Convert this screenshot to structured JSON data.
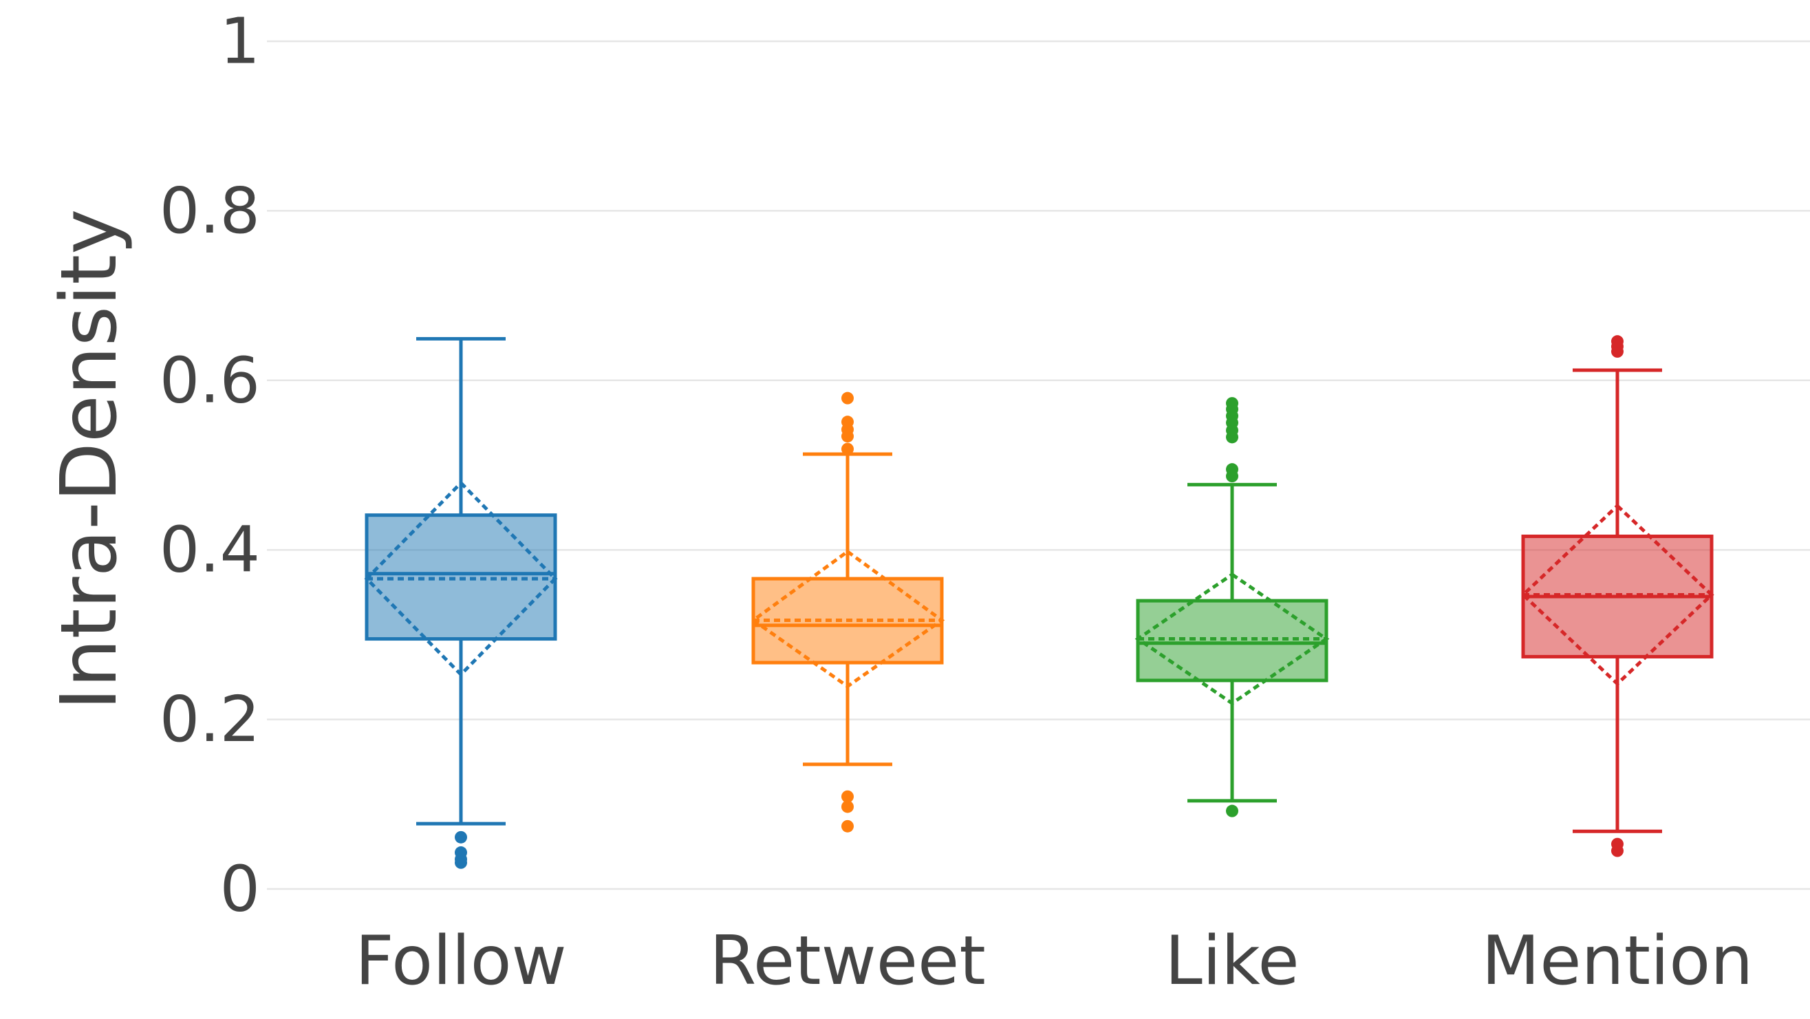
{
  "chart_data": {
    "type": "box",
    "title": "",
    "xlabel": "",
    "ylabel": "Intra-Density",
    "ylim": [
      0,
      1
    ],
    "yticks": [
      0,
      0.2,
      0.4,
      0.6,
      0.8,
      1
    ],
    "ytick_labels": [
      "0",
      "0.2",
      "0.4",
      "0.6",
      "0.8",
      "1"
    ],
    "grid": true,
    "legend": "none",
    "categories": [
      "Follow",
      "Retweet",
      "Like",
      "Mention"
    ],
    "colors": [
      "#1f77b4",
      "#ff7f0e",
      "#2ca02c",
      "#d62728"
    ],
    "boxes": [
      {
        "category": "Follow",
        "whisker_low": 0.077,
        "q1": 0.295,
        "median": 0.372,
        "q3": 0.441,
        "whisker_high": 0.649,
        "mean": 0.366,
        "mean_minus_sd": 0.253,
        "mean_plus_sd": 0.479,
        "outliers": [
          0.031,
          0.035,
          0.043,
          0.061
        ]
      },
      {
        "category": "Retweet",
        "whisker_low": 0.147,
        "q1": 0.267,
        "median": 0.311,
        "q3": 0.366,
        "whisker_high": 0.513,
        "mean": 0.317,
        "mean_minus_sd": 0.239,
        "mean_plus_sd": 0.398,
        "outliers": [
          0.074,
          0.097,
          0.109,
          0.519,
          0.534,
          0.542,
          0.551,
          0.579
        ]
      },
      {
        "category": "Like",
        "whisker_low": 0.104,
        "q1": 0.246,
        "median": 0.29,
        "q3": 0.34,
        "whisker_high": 0.477,
        "mean": 0.295,
        "mean_minus_sd": 0.219,
        "mean_plus_sd": 0.371,
        "outliers": [
          0.092,
          0.487,
          0.495,
          0.533,
          0.541,
          0.55,
          0.558,
          0.566,
          0.573
        ]
      },
      {
        "category": "Mention",
        "whisker_low": 0.068,
        "q1": 0.274,
        "median": 0.345,
        "q3": 0.416,
        "whisker_high": 0.612,
        "mean": 0.347,
        "mean_minus_sd": 0.242,
        "mean_plus_sd": 0.452,
        "outliers": [
          0.045,
          0.053,
          0.634,
          0.64,
          0.646
        ]
      }
    ]
  }
}
